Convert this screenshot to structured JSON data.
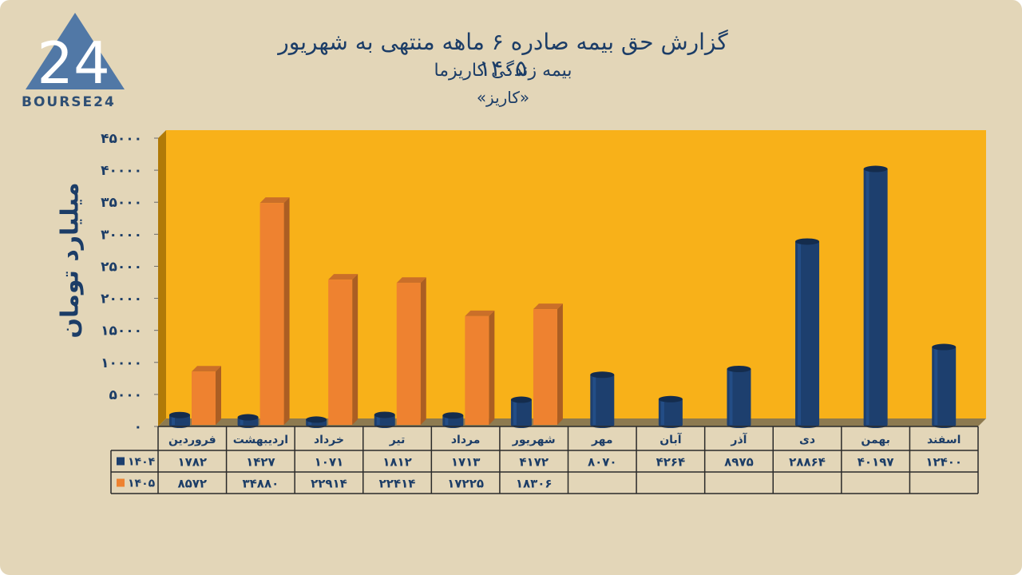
{
  "brand": {
    "logo_mark": "24",
    "logo_text": "BOURSE24"
  },
  "titles": {
    "line1": "گزارش  حق بیمه صادره ۶ ماهه منتهی به شهریور ۱۴۰۵",
    "line2": "بیمه زندگی کاریزما",
    "line3": "«کاریز»"
  },
  "chart_data": {
    "type": "bar",
    "ylabel": "میلیارد تومان",
    "ylim": [
      0,
      45000
    ],
    "y_ticks": [
      0,
      5000,
      10000,
      15000,
      20000,
      25000,
      30000,
      35000,
      40000,
      45000
    ],
    "y_tick_labels": [
      "۰",
      "۵۰۰۰",
      "۱۰۰۰۰",
      "۱۵۰۰۰",
      "۲۰۰۰۰",
      "۲۵۰۰۰",
      "۳۰۰۰۰",
      "۳۵۰۰۰",
      "۴۰۰۰۰",
      "۴۵۰۰۰"
    ],
    "categories": [
      "فروردین",
      "اردیبهشت",
      "خرداد",
      "تیر",
      "مرداد",
      "شهریور",
      "مهر",
      "آبان",
      "آذر",
      "دی",
      "بهمن",
      "اسفند"
    ],
    "series": [
      {
        "name": "۱۴۰۴",
        "color": "#1d3f6e",
        "values": [
          1782,
          1427,
          1071,
          1812,
          1713,
          4172,
          8070,
          4264,
          8975,
          28864,
          40197,
          12400
        ],
        "labels": [
          "۱۷۸۲",
          "۱۴۲۷",
          "۱۰۷۱",
          "۱۸۱۲",
          "۱۷۱۳",
          "۴۱۷۲",
          "۸۰۷۰",
          "۴۲۶۴",
          "۸۹۷۵",
          "۲۸۸۶۴",
          "۴۰۱۹۷",
          "۱۲۴۰۰"
        ]
      },
      {
        "name": "۱۴۰۵",
        "color": "#ee8230",
        "values": [
          8572,
          34880,
          22914,
          22414,
          17225,
          18306,
          null,
          null,
          null,
          null,
          null,
          null
        ],
        "labels": [
          "۸۵۷۲",
          "۳۴۸۸۰",
          "۲۲۹۱۴",
          "۲۲۴۱۴",
          "۱۷۲۲۵",
          "۱۸۳۰۶",
          "",
          "",
          "",
          "",
          "",
          ""
        ]
      }
    ],
    "plot_background": "#f8b119",
    "grid": false
  }
}
